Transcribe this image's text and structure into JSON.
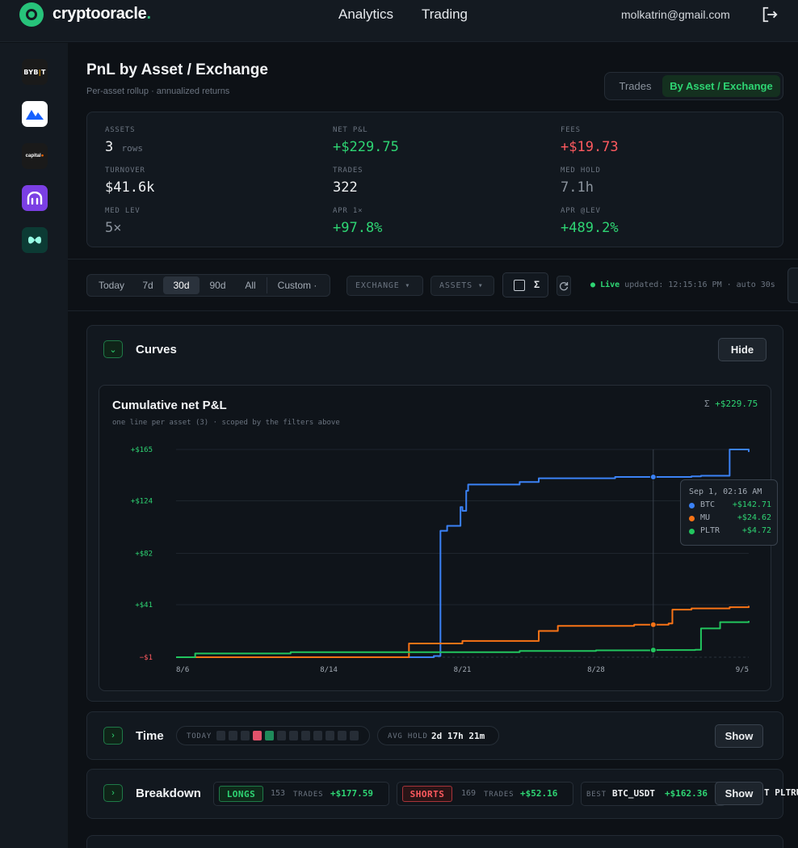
{
  "app": {
    "brand": "cryptooracle",
    "brand_dot": "."
  },
  "nav": {
    "analytics": "Analytics",
    "trading": "Trading"
  },
  "user": {
    "email": "molkatrin@gmail.com"
  },
  "sidebar": {
    "exchanges": [
      "Bybit",
      "MEXC",
      "Capital.com",
      "Kraken",
      "Hyperliquid"
    ]
  },
  "page": {
    "title": "PnL by Asset / Exchange",
    "subtitle": "Per-asset rollup · annualized returns",
    "view_tabs": [
      "Trades",
      "By Asset / Exchange"
    ],
    "active_view": "By Asset / Exchange"
  },
  "stats": [
    {
      "label": "ASSETS",
      "value": "3",
      "unit": "rows"
    },
    {
      "label": "NET P&L",
      "value": "+$229.75"
    },
    {
      "label": "FEES",
      "value": "+$19.73"
    },
    {
      "label": "TURNOVER",
      "value": "$41.6k"
    },
    {
      "label": "TRADES",
      "value": "322"
    },
    {
      "label": "MED HOLD",
      "value": "7.1h"
    },
    {
      "label": "MED LEV",
      "value": "5×"
    },
    {
      "label": "APR 1×",
      "value": "+97.8%"
    },
    {
      "label": "APR @LEV",
      "value": "+489.2%"
    }
  ],
  "filters": {
    "ranges": [
      "Today",
      "7d",
      "30d",
      "90d",
      "All",
      "Custom ·"
    ],
    "active_range": "30d",
    "exchange": "EXCHANGE ▾",
    "assets": "ASSETS ▾",
    "sigma": "Σ",
    "live_label": "Live",
    "live_status": "updated: 12:15:16 PM · auto 30s"
  },
  "curves": {
    "title": "Curves",
    "toggle": "Hide",
    "chart_title": "Cumulative net P&L",
    "chart_sub": "one line per asset (3) · scoped by the filters above",
    "total_sigma": "Σ",
    "total": "+$229.75",
    "tooltip": {
      "title": "Sep 1, 02:16 AM",
      "rows": [
        {
          "name": "BTC",
          "value": "+$142.71",
          "color": "#3b82f6"
        },
        {
          "name": "MU",
          "value": "+$24.62",
          "color": "#f97316"
        },
        {
          "name": "PLTR",
          "value": "+$4.72",
          "color": "#22c55e"
        }
      ]
    }
  },
  "chart_data": {
    "type": "line",
    "title": "Cumulative net P&L",
    "y_ticks": [
      "+$165",
      "+$124",
      "+$82",
      "+$41",
      "−$1"
    ],
    "y_tick_values": [
      165,
      124,
      82,
      41,
      -1
    ],
    "x_ticks": [
      "8/6",
      "8/14",
      "8/21",
      "8/28",
      "9/5"
    ],
    "x_tick_days": [
      6,
      14,
      21,
      28,
      36
    ],
    "xlim": [
      6,
      36
    ],
    "ylim": [
      -1,
      165
    ],
    "grid": true,
    "series": [
      {
        "name": "BTC",
        "color": "#3b82f6",
        "x": [
          6,
          19.5,
          19.8,
          19.85,
          20.2,
          20.9,
          21.0,
          21.2,
          21.3,
          22.5,
          24,
          25,
          28,
          29,
          31,
          33,
          33.5,
          34.8,
          35.0,
          35.6,
          36
        ],
        "y": [
          -1,
          0,
          0,
          100,
          104,
          119,
          116,
          132,
          137,
          137,
          139,
          142,
          142,
          143,
          143,
          143.5,
          144,
          144,
          165,
          165,
          163
        ]
      },
      {
        "name": "MU",
        "color": "#f97316",
        "x": [
          6,
          18,
          18.2,
          21,
          24,
          25,
          26,
          28,
          30,
          31,
          31.8,
          32,
          33,
          35,
          36
        ],
        "y": [
          -1,
          -1,
          10,
          12,
          12,
          20,
          24,
          24,
          25,
          25,
          26,
          37,
          38,
          39,
          40
        ]
      },
      {
        "name": "PLTR",
        "color": "#22c55e",
        "x": [
          6,
          7,
          12,
          18,
          21,
          23,
          24,
          26,
          28,
          30,
          31,
          32,
          33.2,
          33.5,
          34.5,
          35,
          36
        ],
        "y": [
          -1,
          2,
          3,
          3,
          3,
          3,
          4,
          4,
          4.5,
          4.5,
          4.72,
          4.72,
          5,
          22,
          27,
          27,
          28
        ]
      }
    ],
    "hover_x": 31
  },
  "time": {
    "title": "Time",
    "toggle": "Show",
    "today_label": "TODAY",
    "today_cells": [
      "none",
      "none",
      "none",
      "loss",
      "win",
      "none",
      "none",
      "none",
      "none",
      "none",
      "none",
      "none"
    ],
    "avg_hold_label": "AVG HOLD",
    "avg_hold": "2d 17h 21m"
  },
  "breakdown": {
    "title": "Breakdown",
    "toggle": "Show",
    "longs": {
      "tag": "LONGS",
      "count": "153",
      "unit": "TRADES",
      "pnl": "+$177.59"
    },
    "shorts": {
      "tag": "SHORTS",
      "count": "169",
      "unit": "TRADES",
      "pnl": "+$52.16"
    },
    "best": {
      "label": "BEST",
      "symbol": "BTC_USDT",
      "pnl": "+$162.36"
    },
    "worst_partial": "T PLTRUS"
  },
  "colors": {
    "accent": "#2ed573",
    "negative": "#ff5a5f",
    "btc": "#3b82f6",
    "mu": "#f97316",
    "pltr": "#22c55e"
  }
}
